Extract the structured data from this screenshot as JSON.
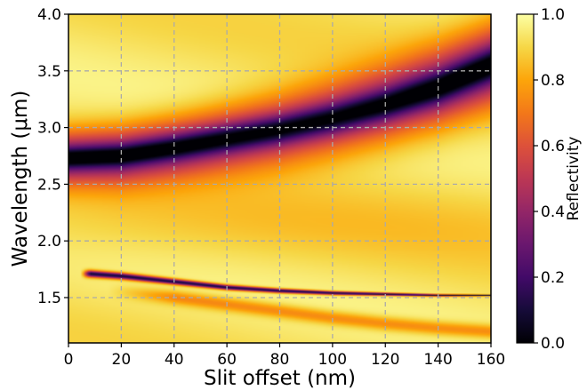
{
  "chart_data": {
    "type": "heatmap",
    "title": "",
    "xlabel": "Slit offset (nm)",
    "ylabel": "Wavelength (μm)",
    "xlim": [
      0,
      160
    ],
    "ylim": [
      1.1,
      4.0
    ],
    "x_ticks": [
      0,
      20,
      40,
      60,
      80,
      100,
      120,
      140,
      160
    ],
    "y_ticks": [
      1.5,
      2.0,
      2.5,
      3.0,
      3.5,
      4.0
    ],
    "x_tick_labels": [
      "0",
      "20",
      "40",
      "60",
      "80",
      "100",
      "120",
      "140",
      "160"
    ],
    "y_tick_labels": [
      "1.5",
      "2.0",
      "2.5",
      "3.0",
      "3.5",
      "4.0"
    ],
    "grid": true,
    "colormap": "inferno",
    "colorbar": {
      "label": "Reflectivity",
      "range": [
        0.0,
        1.0
      ],
      "ticks": [
        0.0,
        0.2,
        0.4,
        0.6,
        0.8,
        1.0
      ],
      "tick_labels": [
        "0.0",
        "0.2",
        "0.4",
        "0.6",
        "0.8",
        "1.0"
      ]
    },
    "features": [
      {
        "kind": "broad reflectivity dip",
        "min_value": 0.0,
        "center_wavelength": [
          [
            0,
            2.73
          ],
          [
            20,
            2.75
          ],
          [
            40,
            2.82
          ],
          [
            60,
            2.9
          ],
          [
            80,
            2.98
          ],
          [
            100,
            3.08
          ],
          [
            120,
            3.2
          ],
          [
            140,
            3.35
          ],
          [
            160,
            3.55
          ]
        ]
      },
      {
        "kind": "narrow reflectivity dip",
        "min_value": 0.1,
        "x_range": [
          8,
          160
        ],
        "center_wavelength": [
          [
            8,
            1.71
          ],
          [
            20,
            1.69
          ],
          [
            40,
            1.64
          ],
          [
            60,
            1.59
          ],
          [
            80,
            1.56
          ],
          [
            100,
            1.54
          ],
          [
            120,
            1.53
          ],
          [
            140,
            1.52
          ],
          [
            160,
            1.52
          ]
        ]
      },
      {
        "kind": "weak reflectivity dip",
        "min_value": 0.75,
        "center_wavelength": [
          [
            20,
            1.55
          ],
          [
            40,
            1.5
          ],
          [
            60,
            1.44
          ],
          [
            80,
            1.38
          ],
          [
            100,
            1.32
          ],
          [
            120,
            1.27
          ],
          [
            140,
            1.23
          ],
          [
            160,
            1.2
          ]
        ]
      }
    ]
  }
}
